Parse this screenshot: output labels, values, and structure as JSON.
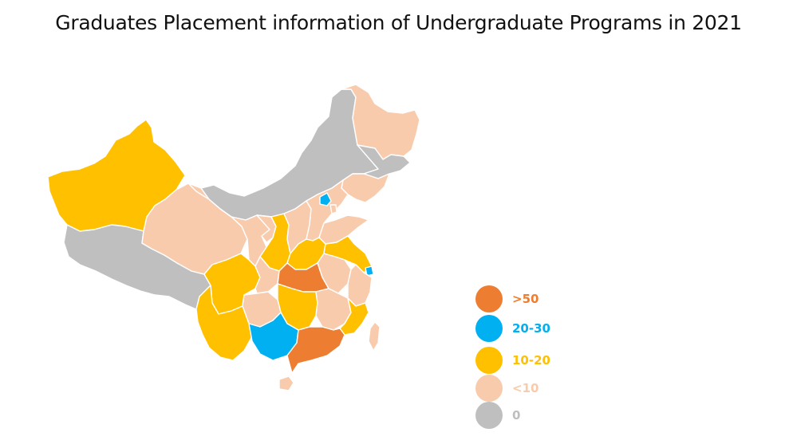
{
  "title": "Graduates Placement information of Undergraduate Programs in 2021",
  "colors": {
    "gt50": "#ed7d31",
    "r20_30": "#00b0f0",
    "r10_20": "#ffc000",
    "lt10": "#f8cbad",
    "zero": "#bfbfbf"
  },
  "legend": [
    {
      "label": ">50",
      "color": "#ed7d31"
    },
    {
      "label": "20-30",
      "color": "#00b0f0"
    },
    {
      "label": "10-20",
      "color": "#ffc000"
    },
    {
      "label": "<10",
      "color": "#f8cbad"
    },
    {
      "label": "0",
      "color": "#bfbfbf"
    }
  ],
  "regions": [
    {
      "name": "xinjiang",
      "category": "10-20"
    },
    {
      "name": "tibet",
      "category": "0"
    },
    {
      "name": "qinghai",
      "category": "<10"
    },
    {
      "name": "gansu",
      "category": "<10"
    },
    {
      "name": "inner-mongolia",
      "category": "0"
    },
    {
      "name": "heilongjiang",
      "category": "<10"
    },
    {
      "name": "jilin",
      "category": "0"
    },
    {
      "name": "liaoning",
      "category": "<10"
    },
    {
      "name": "ningxia",
      "category": "<10"
    },
    {
      "name": "shaanxi",
      "category": "10-20"
    },
    {
      "name": "shanxi",
      "category": "<10"
    },
    {
      "name": "hebei",
      "category": "<10"
    },
    {
      "name": "beijing",
      "category": "20-30"
    },
    {
      "name": "tianjin",
      "category": "<10"
    },
    {
      "name": "shandong",
      "category": "<10"
    },
    {
      "name": "henan",
      "category": "10-20"
    },
    {
      "name": "jiangsu",
      "category": "10-20"
    },
    {
      "name": "anhui",
      "category": "<10"
    },
    {
      "name": "shanghai",
      "category": "20-30"
    },
    {
      "name": "zhejiang",
      "category": "<10"
    },
    {
      "name": "sichuan",
      "category": "10-20"
    },
    {
      "name": "chongqing",
      "category": "<10"
    },
    {
      "name": "hubei",
      "category": ">50"
    },
    {
      "name": "hunan",
      "category": "10-20"
    },
    {
      "name": "jiangxi",
      "category": "<10"
    },
    {
      "name": "fujian",
      "category": "10-20"
    },
    {
      "name": "guizhou",
      "category": "<10"
    },
    {
      "name": "yunnan",
      "category": "10-20"
    },
    {
      "name": "guangxi",
      "category": "20-30"
    },
    {
      "name": "guangdong",
      "category": ">50"
    },
    {
      "name": "hainan",
      "category": "<10"
    },
    {
      "name": "taiwan",
      "category": "<10"
    }
  ]
}
